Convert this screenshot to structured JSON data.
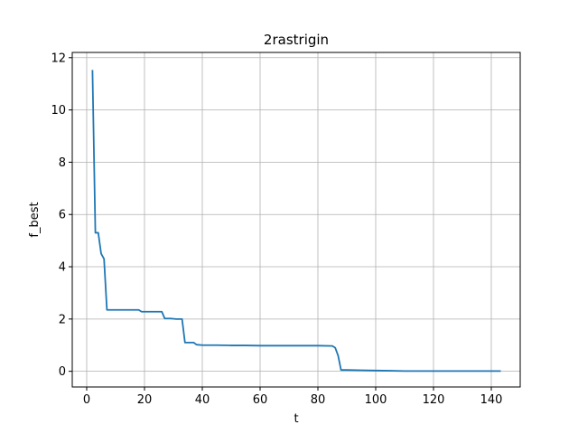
{
  "chart_data": {
    "type": "line",
    "title": "2rastrigin",
    "xlabel": "t",
    "ylabel": "f_best",
    "xlim": [
      -5,
      150
    ],
    "ylim": [
      -0.6,
      12.2
    ],
    "xticks": [
      0,
      20,
      40,
      60,
      80,
      100,
      120,
      140
    ],
    "yticks": [
      0,
      2,
      4,
      6,
      8,
      10,
      12
    ],
    "grid": true,
    "series": [
      {
        "color": "#1f77b4",
        "x": [
          2,
          3,
          4,
          5,
          6,
          7,
          8,
          18,
          19,
          26,
          27,
          28,
          29,
          31,
          32,
          33,
          34,
          36,
          37,
          38,
          40,
          45,
          50,
          55,
          60,
          65,
          70,
          75,
          80,
          85,
          86,
          87,
          88,
          90,
          95,
          100,
          105,
          110,
          120,
          130,
          140,
          143
        ],
        "y": [
          11.5,
          5.3,
          5.3,
          4.5,
          4.3,
          2.35,
          2.35,
          2.35,
          2.28,
          2.28,
          2.02,
          2.02,
          2.02,
          2.0,
          2.0,
          2.0,
          1.1,
          1.1,
          1.1,
          1.02,
          1.0,
          1.0,
          0.99,
          0.99,
          0.98,
          0.98,
          0.98,
          0.98,
          0.98,
          0.97,
          0.9,
          0.6,
          0.05,
          0.05,
          0.04,
          0.03,
          0.02,
          0.01,
          0.01,
          0.01,
          0.01,
          0.01
        ]
      }
    ]
  }
}
